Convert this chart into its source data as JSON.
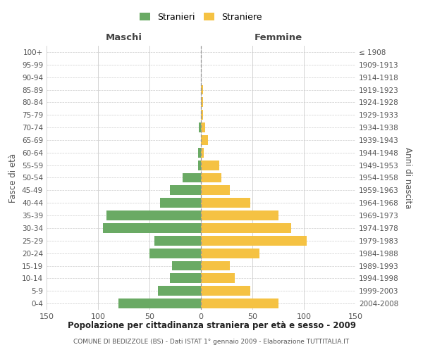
{
  "age_groups": [
    "0-4",
    "5-9",
    "10-14",
    "15-19",
    "20-24",
    "25-29",
    "30-34",
    "35-39",
    "40-44",
    "45-49",
    "50-54",
    "55-59",
    "60-64",
    "65-69",
    "70-74",
    "75-79",
    "80-84",
    "85-89",
    "90-94",
    "95-99",
    "100+"
  ],
  "birth_years": [
    "2004-2008",
    "1999-2003",
    "1994-1998",
    "1989-1993",
    "1984-1988",
    "1979-1983",
    "1974-1978",
    "1969-1973",
    "1964-1968",
    "1959-1963",
    "1954-1958",
    "1949-1953",
    "1944-1948",
    "1939-1943",
    "1934-1938",
    "1929-1933",
    "1924-1928",
    "1919-1923",
    "1914-1918",
    "1909-1913",
    "≤ 1908"
  ],
  "maschi": [
    80,
    42,
    30,
    28,
    50,
    45,
    95,
    92,
    40,
    30,
    18,
    3,
    3,
    0,
    2,
    0,
    0,
    0,
    0,
    0,
    0
  ],
  "femmine": [
    75,
    48,
    33,
    28,
    57,
    103,
    88,
    75,
    48,
    28,
    20,
    18,
    3,
    7,
    4,
    2,
    2,
    2,
    0,
    0,
    0
  ],
  "maschi_color": "#6aaa64",
  "femmine_color": "#f5c243",
  "grid_color": "#cccccc",
  "title": "Popolazione per cittadinanza straniera per età e sesso - 2009",
  "subtitle": "COMUNE DI BEDIZZOLE (BS) - Dati ISTAT 1° gennaio 2009 - Elaborazione TUTTITALIA.IT",
  "xlabel_left": "Maschi",
  "xlabel_right": "Femmine",
  "ylabel_left": "Fasce di età",
  "ylabel_right": "Anni di nascita",
  "legend_maschi": "Stranieri",
  "legend_femmine": "Straniere",
  "xlim": 150
}
